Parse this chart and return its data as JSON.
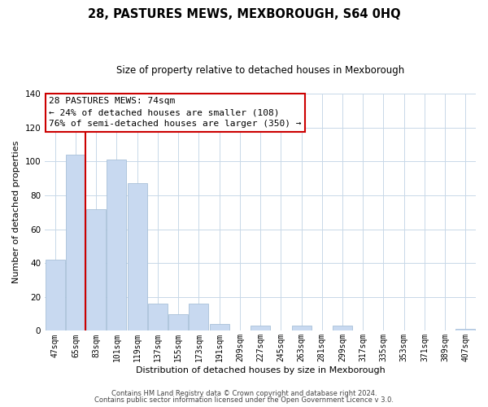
{
  "title": "28, PASTURES MEWS, MEXBOROUGH, S64 0HQ",
  "subtitle": "Size of property relative to detached houses in Mexborough",
  "xlabel": "Distribution of detached houses by size in Mexborough",
  "ylabel": "Number of detached properties",
  "categories": [
    "47sqm",
    "65sqm",
    "83sqm",
    "101sqm",
    "119sqm",
    "137sqm",
    "155sqm",
    "173sqm",
    "191sqm",
    "209sqm",
    "227sqm",
    "245sqm",
    "263sqm",
    "281sqm",
    "299sqm",
    "317sqm",
    "335sqm",
    "353sqm",
    "371sqm",
    "389sqm",
    "407sqm"
  ],
  "values": [
    42,
    104,
    72,
    101,
    87,
    16,
    10,
    16,
    4,
    0,
    3,
    0,
    3,
    0,
    3,
    0,
    0,
    0,
    0,
    0,
    1
  ],
  "bar_color": "#c8d9f0",
  "bar_edge_color": "#a8c0d8",
  "vline_color": "#cc0000",
  "vline_pos": 1.48,
  "annotation_title": "28 PASTURES MEWS: 74sqm",
  "annotation_line1": "← 24% of detached houses are smaller (108)",
  "annotation_line2": "76% of semi-detached houses are larger (350) →",
  "annotation_box_color": "#ffffff",
  "annotation_box_edge": "#cc0000",
  "ylim": [
    0,
    140
  ],
  "yticks": [
    0,
    20,
    40,
    60,
    80,
    100,
    120,
    140
  ],
  "footer1": "Contains HM Land Registry data © Crown copyright and database right 2024.",
  "footer2": "Contains public sector information licensed under the Open Government Licence v 3.0.",
  "background_color": "#ffffff",
  "grid_color": "#c8d8e8",
  "title_fontsize": 10.5,
  "subtitle_fontsize": 8.5,
  "axis_label_fontsize": 8,
  "tick_fontsize": 7,
  "annotation_fontsize": 8,
  "footer_fontsize": 6
}
